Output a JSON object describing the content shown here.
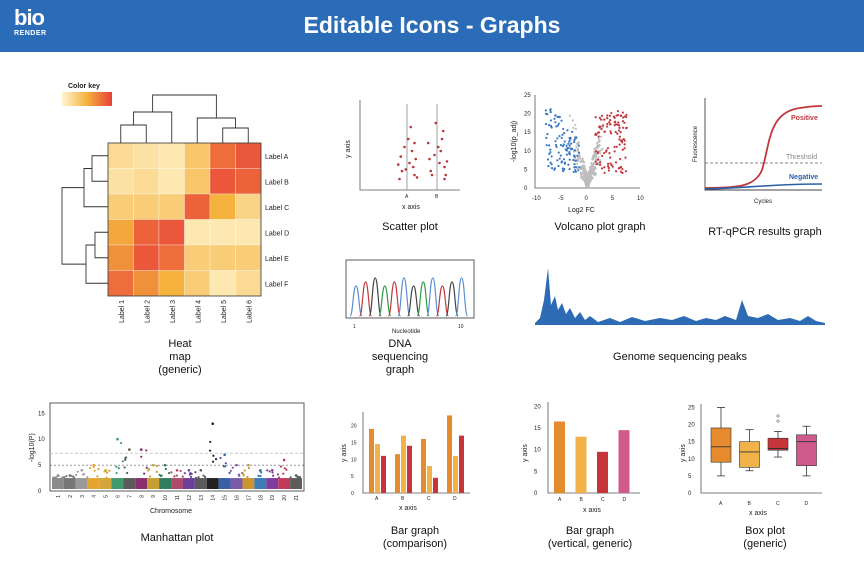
{
  "header": {
    "logo_top": "bio",
    "logo_bottom": "RENDER",
    "title": "Editable Icons - Graphs"
  },
  "captions": {
    "heatmap": [
      "Heat",
      "map",
      "(generic)"
    ],
    "scatter": "Scatter plot",
    "volcano": "Volcano plot graph",
    "rtqpcr": "RT-qPCR results graph",
    "dna": [
      "DNA",
      "sequencing",
      "graph"
    ],
    "genome": "Genome sequencing peaks",
    "manhattan": "Manhattan plot",
    "bar_comparison": [
      "Bar graph",
      "(comparison)"
    ],
    "bar_vertical": [
      "Bar graph",
      "(vertical, generic)"
    ],
    "box": [
      "Box plot",
      "(generic)"
    ]
  },
  "chart_data": [
    {
      "type": "heatmap",
      "legend": "Color key",
      "rows": [
        "Label A",
        "Label B",
        "Label C",
        "Label D",
        "Label E",
        "Label F"
      ],
      "cols": [
        "Label 1",
        "Label 2",
        "Label 3",
        "Label 4",
        "Label 5",
        "Label 6"
      ],
      "values": [
        [
          0.2,
          0.15,
          0.1,
          0.35,
          0.8,
          0.9
        ],
        [
          0.15,
          0.2,
          0.1,
          0.35,
          0.9,
          0.85
        ],
        [
          0.3,
          0.3,
          0.3,
          0.85,
          0.5,
          0.25
        ],
        [
          0.55,
          0.85,
          0.9,
          0.1,
          0.1,
          0.1
        ],
        [
          0.65,
          0.9,
          0.8,
          0.3,
          0.3,
          0.3
        ],
        [
          0.8,
          0.65,
          0.5,
          0.3,
          0.1,
          0.2
        ]
      ],
      "colors": {
        "low": "#fff5d0",
        "high": "#e8403a"
      }
    },
    {
      "type": "scatter",
      "xlabel": "x axis",
      "ylabel": "y axis",
      "categories": [
        "A",
        "B"
      ],
      "points_A": [
        [
          -0.2,
          2
        ],
        [
          0.1,
          3
        ],
        [
          0.3,
          1.5
        ],
        [
          -0.1,
          5
        ],
        [
          0.2,
          4.5
        ],
        [
          0.35,
          3.5
        ],
        [
          -0.3,
          1
        ],
        [
          0.05,
          6
        ],
        [
          0.25,
          2.5
        ],
        [
          -0.25,
          3.8
        ],
        [
          0.15,
          7.5
        ],
        [
          -0.05,
          2.2
        ],
        [
          0.4,
          1.2
        ],
        [
          -0.35,
          2.8
        ],
        [
          0.3,
          5.5
        ]
      ],
      "points_B": [
        [
          -0.2,
          1.5
        ],
        [
          0.1,
          3
        ],
        [
          0.3,
          2.5
        ],
        [
          -0.1,
          4
        ],
        [
          0.2,
          6
        ],
        [
          0.35,
          1.5
        ],
        [
          -0.3,
          3.5
        ],
        [
          0.05,
          5
        ],
        [
          0.25,
          7
        ],
        [
          -0.25,
          2
        ],
        [
          0.15,
          4.5
        ],
        [
          -0.05,
          8
        ],
        [
          0.4,
          3.2
        ],
        [
          -0.35,
          5.5
        ],
        [
          0.3,
          1
        ]
      ],
      "colors": {
        "point": "#b5393b",
        "line": "#888888"
      }
    },
    {
      "type": "scatter",
      "name": "volcano",
      "xlabel": "Log2 FC",
      "ylabel": "-log10(p_adj)",
      "xticks": [
        "-10",
        "-5",
        "0",
        "5",
        "10"
      ],
      "yticks": [
        "0",
        "5",
        "10",
        "15",
        "20",
        "25"
      ],
      "xlim": [
        -10,
        10
      ],
      "ylim": [
        0,
        25
      ],
      "colors": {
        "down": "#3b78c4",
        "up": "#c2373c",
        "ns": "#bdbdbd"
      }
    },
    {
      "type": "line",
      "name": "rtqpcr",
      "xlabel": "Cycles",
      "ylabel": "Fluorescence",
      "series": [
        {
          "name": "Positive",
          "color": "#c2373c"
        },
        {
          "name": "Threshold",
          "color": "#888888"
        },
        {
          "name": "Negative",
          "color": "#2d5fa8"
        }
      ]
    },
    {
      "type": "line",
      "name": "dna",
      "xlabel": "Nucleotide",
      "xticks": [
        "1",
        "10"
      ],
      "peak_colors": [
        "#5b8fd0",
        "#c2373c",
        "#444444",
        "#2f9a4a",
        "#c2373c",
        "#5b8fd0",
        "#444444",
        "#2f9a4a",
        "#5b8fd0",
        "#c2373c",
        "#444444",
        "#5b8fd0"
      ]
    },
    {
      "type": "area",
      "name": "genome",
      "color": "#2d6cb5"
    },
    {
      "type": "scatter",
      "name": "manhattan",
      "xlabel": "Chromosome",
      "ylabel": "-log10(P)",
      "yticks": [
        "0",
        "5",
        "10",
        "15"
      ],
      "ylim": [
        0,
        17
      ],
      "chromosomes": [
        "1",
        "2",
        "3",
        "4",
        "5",
        "6",
        "7",
        "8",
        "9",
        "10",
        "11",
        "12",
        "13",
        "14",
        "15",
        "16",
        "17",
        "18",
        "19",
        "20",
        "21"
      ],
      "chrom_colors": [
        "#8a8a8a",
        "#777777",
        "#9a9a9a",
        "#e6a531",
        "#d4a63a",
        "#3f9a6e",
        "#5b5b5b",
        "#8c2e6e",
        "#c5a031",
        "#2f7d5c",
        "#b04a6a",
        "#6c3f9b",
        "#5a5a5a",
        "#222222",
        "#3a5fa6",
        "#7a5aa8",
        "#c99530",
        "#3a7bb8",
        "#7d3d9a",
        "#c23a5a",
        "#5c5c5c"
      ],
      "peaks": [
        3,
        3,
        4,
        5,
        4,
        10,
        8,
        8,
        5,
        5,
        4,
        4,
        4,
        13,
        7,
        5,
        5,
        4,
        4,
        6,
        3
      ]
    },
    {
      "type": "bar",
      "name": "bar_comparison",
      "xlabel": "x axis",
      "ylabel": "y axis",
      "categories": [
        "A",
        "B",
        "C",
        "D"
      ],
      "yticks": [
        "0",
        "5",
        "10",
        "15",
        "20"
      ],
      "ylim": [
        0,
        24
      ],
      "series": [
        {
          "values": [
            19,
            11.5,
            16,
            23
          ],
          "color": "#e68a2e"
        },
        {
          "values": [
            14.5,
            17,
            8,
            11
          ],
          "color": "#f2b24a"
        },
        {
          "values": [
            11,
            14,
            4.5,
            17
          ],
          "color": "#c8343b"
        }
      ]
    },
    {
      "type": "bar",
      "name": "bar_vertical",
      "xlabel": "x axis",
      "ylabel": "y axis",
      "categories": [
        "A",
        "B",
        "C",
        "D"
      ],
      "yticks": [
        "0",
        "5",
        "10",
        "15",
        "20"
      ],
      "ylim": [
        0,
        21
      ],
      "values": [
        16.5,
        13,
        9.5,
        14.5
      ],
      "colors": [
        "#e68a2e",
        "#f2b24a",
        "#c8343b",
        "#cf5a8b"
      ]
    },
    {
      "type": "box",
      "name": "box",
      "xlabel": "x axis",
      "ylabel": "y axis",
      "categories": [
        "A",
        "B",
        "C",
        "D"
      ],
      "yticks": [
        "0",
        "5",
        "10",
        "15",
        "20",
        "25"
      ],
      "ylim": [
        0,
        26
      ],
      "boxes": [
        {
          "min": 5,
          "q1": 9,
          "median": 13.5,
          "q3": 19,
          "max": 25,
          "color": "#e68a2e"
        },
        {
          "min": 6.5,
          "q1": 7.5,
          "median": 12,
          "q3": 15,
          "max": 18.5,
          "color": "#f2b24a"
        },
        {
          "min": 10.5,
          "q1": 12.5,
          "median": 13,
          "q3": 16,
          "max": 18,
          "outliers": [
            21,
            22.5
          ],
          "color": "#c8343b"
        },
        {
          "min": 5,
          "q1": 8,
          "median": 15,
          "q3": 17,
          "max": 19.5,
          "color": "#cf5a8b"
        }
      ]
    }
  ]
}
